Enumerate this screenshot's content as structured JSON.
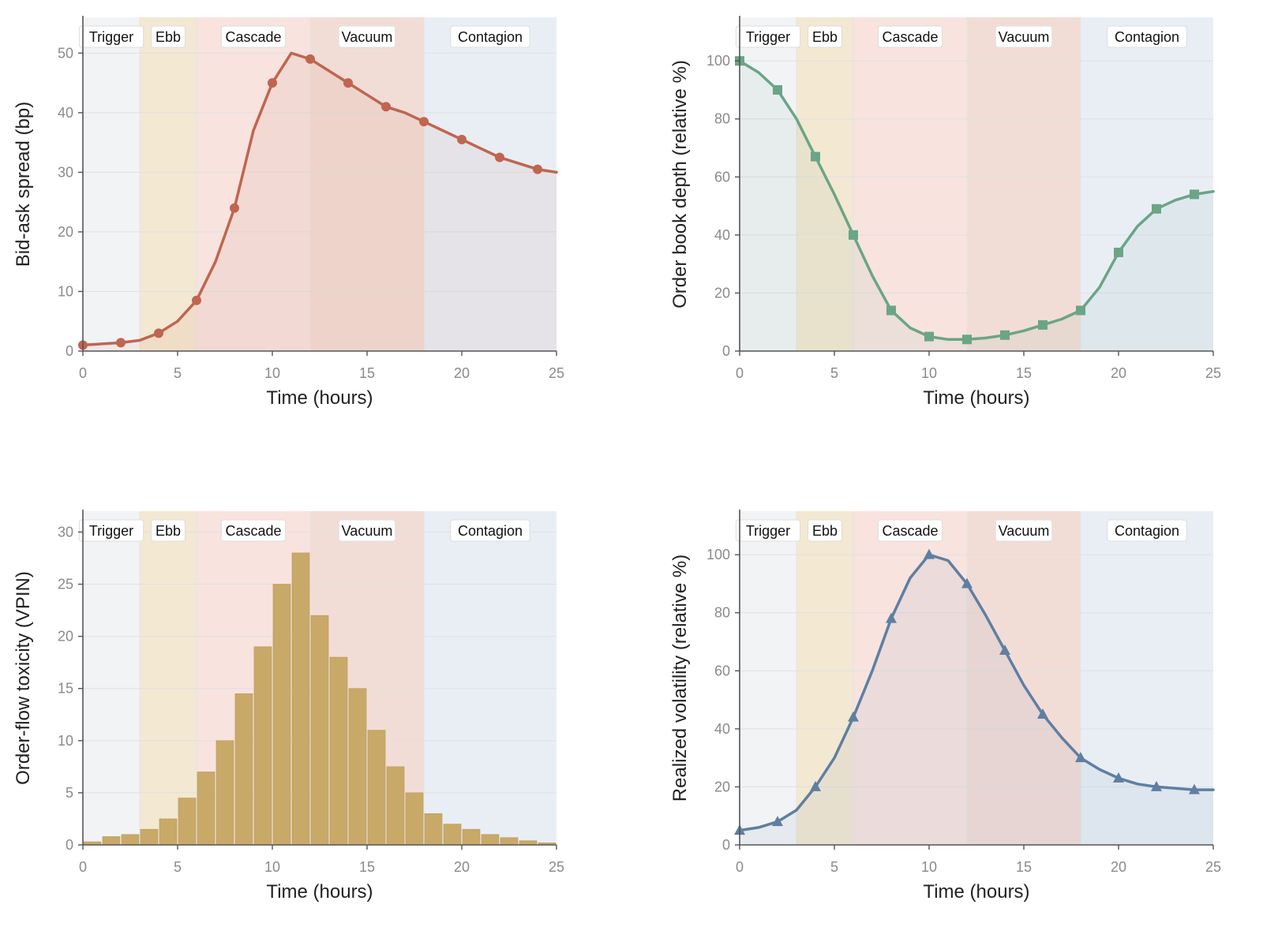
{
  "phases": [
    {
      "label": "Trigger",
      "start": 0,
      "end": 3,
      "color": "#f2f3f5",
      "label_x": 1.5
    },
    {
      "label": "Ebb",
      "start": 3,
      "end": 6,
      "color": "#f3e8d2",
      "label_x": 4.5
    },
    {
      "label": "Cascade",
      "start": 6,
      "end": 12,
      "color": "#f8e3df",
      "label_x": 9
    },
    {
      "label": "Vacuum",
      "start": 12,
      "end": 18,
      "color": "#f2ddd6",
      "label_x": 15
    },
    {
      "label": "Contagion",
      "start": 18,
      "end": 25,
      "color": "#e9eef5",
      "label_x": 21.5
    }
  ],
  "chart_data": [
    {
      "id": "spread",
      "type": "line",
      "xlabel": "Time (hours)",
      "ylabel": "Bid-ask spread (bp)",
      "xlim": [
        0,
        25
      ],
      "ylim": [
        0,
        56
      ],
      "xticks": [
        0,
        5,
        10,
        15,
        20,
        25
      ],
      "yticks": [
        0,
        10,
        20,
        30,
        40,
        50
      ],
      "color": "#c0654f",
      "fill_color": "#c0654f",
      "marker": "circle",
      "series": [
        {
          "x": [
            0,
            1,
            2,
            3,
            4,
            5,
            6,
            7,
            8,
            9,
            10,
            11,
            12,
            13,
            14,
            15,
            16,
            17,
            18,
            19,
            20,
            21,
            22,
            23,
            24,
            25
          ],
          "y": [
            1,
            1.2,
            1.4,
            1.8,
            3,
            5,
            8.5,
            15,
            24,
            37,
            45,
            50,
            49,
            47,
            45,
            43,
            41,
            40,
            38.5,
            37,
            35.5,
            34,
            32.5,
            31.5,
            30.5,
            30
          ]
        }
      ],
      "marker_x": [
        0,
        2,
        4,
        6,
        8,
        10,
        12,
        14,
        16,
        18,
        20,
        22,
        24
      ]
    },
    {
      "id": "depth",
      "type": "line",
      "xlabel": "Time (hours)",
      "ylabel": "Order book depth (relative %)",
      "xlim": [
        0,
        25
      ],
      "ylim": [
        0,
        115
      ],
      "xticks": [
        0,
        5,
        10,
        15,
        20,
        25
      ],
      "yticks": [
        0,
        20,
        40,
        60,
        80,
        100
      ],
      "color": "#6aa586",
      "fill_color": "#6aa586",
      "marker": "square",
      "series": [
        {
          "x": [
            0,
            1,
            2,
            3,
            4,
            5,
            6,
            7,
            8,
            9,
            10,
            11,
            12,
            13,
            14,
            15,
            16,
            17,
            18,
            19,
            20,
            21,
            22,
            23,
            24,
            25
          ],
          "y": [
            100,
            96,
            90,
            80,
            67,
            54,
            40,
            26,
            14,
            8,
            5,
            4,
            4,
            4.5,
            5.5,
            7,
            9,
            11,
            14,
            22,
            34,
            43,
            49,
            52,
            54,
            55
          ]
        }
      ],
      "marker_x": [
        0,
        2,
        4,
        6,
        8,
        10,
        12,
        14,
        16,
        18,
        20,
        22,
        24
      ]
    },
    {
      "id": "vpin",
      "type": "bar",
      "xlabel": "Time (hours)",
      "ylabel": "Order-flow toxicity (VPIN)",
      "xlim": [
        0,
        25
      ],
      "ylim": [
        0,
        32
      ],
      "xticks": [
        0,
        5,
        10,
        15,
        20,
        25
      ],
      "yticks": [
        0,
        5,
        10,
        15,
        20,
        25,
        30
      ],
      "color": "#c8a968",
      "series": [
        {
          "x": [
            0,
            1,
            2,
            3,
            4,
            5,
            6,
            7,
            8,
            9,
            10,
            11,
            12,
            13,
            14,
            15,
            16,
            17,
            18,
            19,
            20,
            21,
            22,
            23,
            24
          ],
          "y": [
            0.3,
            0.8,
            1,
            1.5,
            2.5,
            4.5,
            7,
            10,
            14.5,
            19,
            25,
            28,
            22,
            18,
            15,
            11,
            7.5,
            5,
            3,
            2,
            1.5,
            1,
            0.7,
            0.4,
            0.2
          ]
        }
      ]
    },
    {
      "id": "vol",
      "type": "line",
      "xlabel": "Time (hours)",
      "ylabel": "Realized volatility (relative %)",
      "xlim": [
        0,
        25
      ],
      "ylim": [
        0,
        115
      ],
      "xticks": [
        0,
        5,
        10,
        15,
        20,
        25
      ],
      "yticks": [
        0,
        20,
        40,
        60,
        80,
        100
      ],
      "color": "#5e7fa3",
      "fill_color": "#5e7fa3",
      "marker": "triangle",
      "series": [
        {
          "x": [
            0,
            1,
            2,
            3,
            4,
            5,
            6,
            7,
            8,
            9,
            10,
            11,
            12,
            13,
            14,
            15,
            16,
            17,
            18,
            19,
            20,
            21,
            22,
            23,
            24,
            25
          ],
          "y": [
            5,
            6,
            8,
            12,
            20,
            30,
            44,
            60,
            78,
            92,
            100,
            98,
            90,
            79,
            67,
            55,
            45,
            37,
            30,
            26,
            23,
            21,
            20,
            19.5,
            19,
            19
          ]
        }
      ],
      "marker_x": [
        0,
        2,
        4,
        6,
        8,
        10,
        12,
        14,
        16,
        18,
        20,
        22,
        24
      ]
    }
  ]
}
